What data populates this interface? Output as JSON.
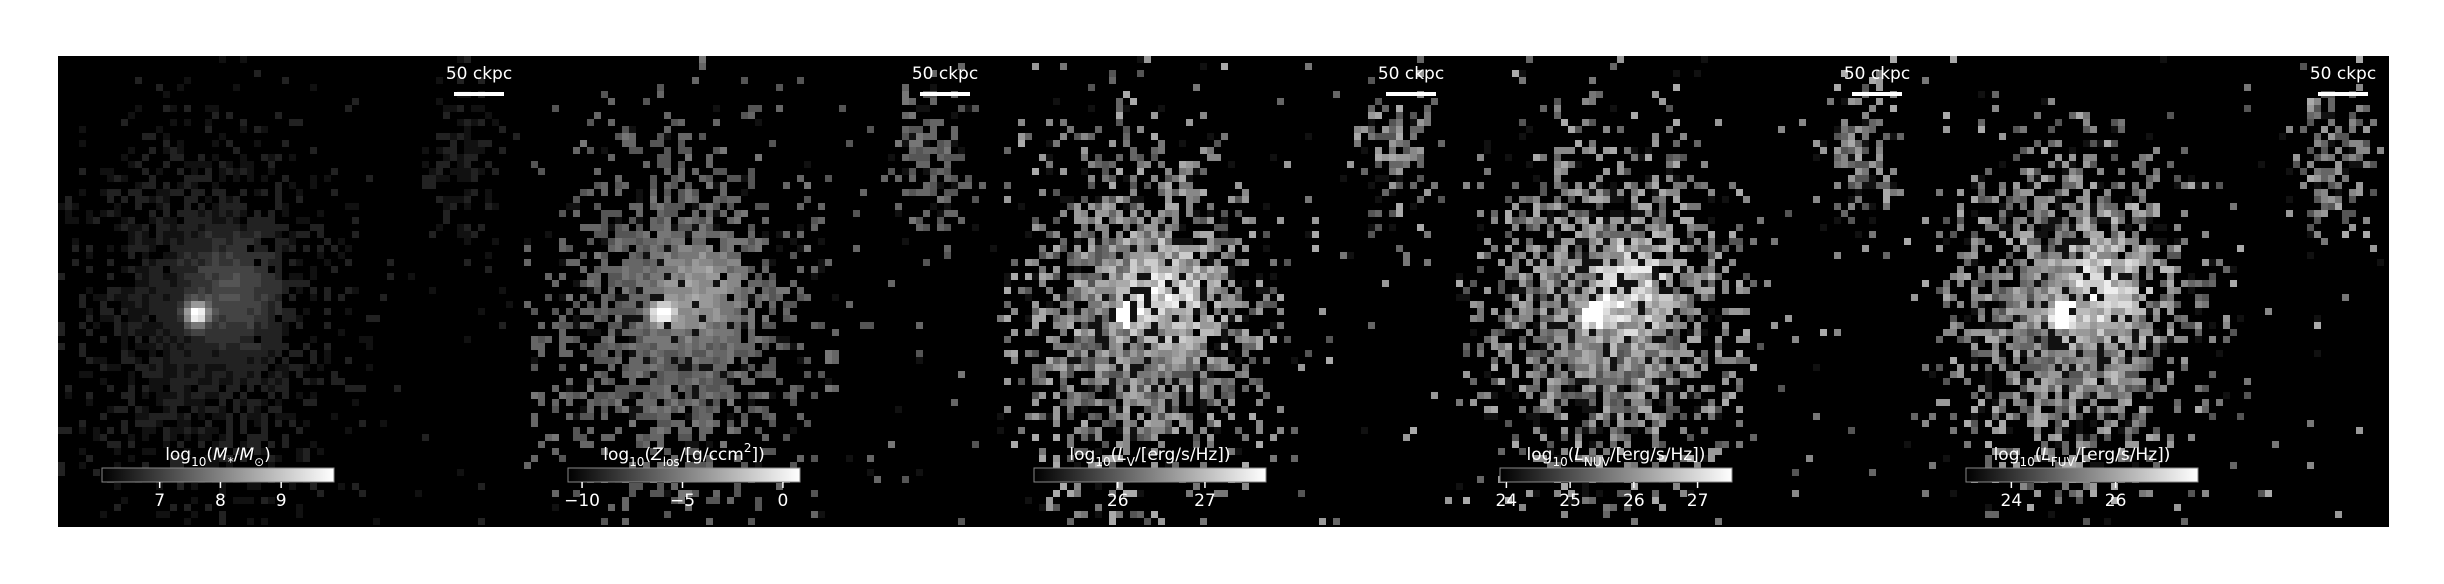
{
  "chart_data": [
    {
      "type": "image",
      "scale_bar": "50 ckpc",
      "colorbar": {
        "label": [
          {
            "text": "log"
          },
          {
            "text": "10",
            "sub": true
          },
          {
            "text": "("
          },
          {
            "text": "M",
            "italic": true
          },
          {
            "text": "*",
            "sub": true
          },
          {
            "text": "/"
          },
          {
            "text": "M",
            "italic": true
          },
          {
            "text": "⊙",
            "sub": true
          },
          {
            "text": ")"
          }
        ],
        "clim": [
          6.05,
          9.87
        ],
        "ticks": [
          7,
          8,
          9
        ]
      }
    },
    {
      "type": "image",
      "scale_bar": "50 ckpc",
      "colorbar": {
        "label": [
          {
            "text": "log"
          },
          {
            "text": "10",
            "sub": true
          },
          {
            "text": "("
          },
          {
            "text": "Z",
            "italic": true
          },
          {
            "text": "los",
            "sub": true
          },
          {
            "text": "/[g/ccm"
          },
          {
            "text": "2",
            "sup": true
          },
          {
            "text": "])"
          }
        ],
        "clim": [
          -10.7,
          0.85
        ],
        "ticks": [
          {
            "value": -10,
            "label": "−10"
          },
          {
            "value": -5,
            "label": "−5"
          },
          0
        ]
      }
    },
    {
      "type": "image",
      "scale_bar": "50 ckpc",
      "colorbar": {
        "label": [
          {
            "text": "log"
          },
          {
            "text": "10",
            "sub": true
          },
          {
            "text": "("
          },
          {
            "text": "L",
            "italic": true
          },
          {
            "text": "V",
            "sub": true
          },
          {
            "text": "/[erg/s/Hz])"
          }
        ],
        "clim": [
          25.04,
          27.7
        ],
        "ticks": [
          26,
          27
        ]
      }
    },
    {
      "type": "image",
      "scale_bar": "50 ckpc",
      "colorbar": {
        "label": [
          {
            "text": "log"
          },
          {
            "text": "10",
            "sub": true
          },
          {
            "text": "("
          },
          {
            "text": "L",
            "italic": true
          },
          {
            "text": "NUV",
            "sub": true
          },
          {
            "text": "/[erg/s/Hz])"
          }
        ],
        "clim": [
          23.9,
          27.54
        ],
        "ticks": [
          24,
          25,
          26,
          27
        ]
      }
    },
    {
      "type": "image",
      "scale_bar": "50 ckpc",
      "colorbar": {
        "label": [
          {
            "text": "log"
          },
          {
            "text": "10",
            "sub": true
          },
          {
            "text": "("
          },
          {
            "text": "L",
            "italic": true
          },
          {
            "text": "FUV",
            "sub": true
          },
          {
            "text": "/[erg/s/Hz])"
          }
        ],
        "clim": [
          23.13,
          27.58
        ],
        "ticks": [
          24,
          26
        ]
      }
    }
  ]
}
